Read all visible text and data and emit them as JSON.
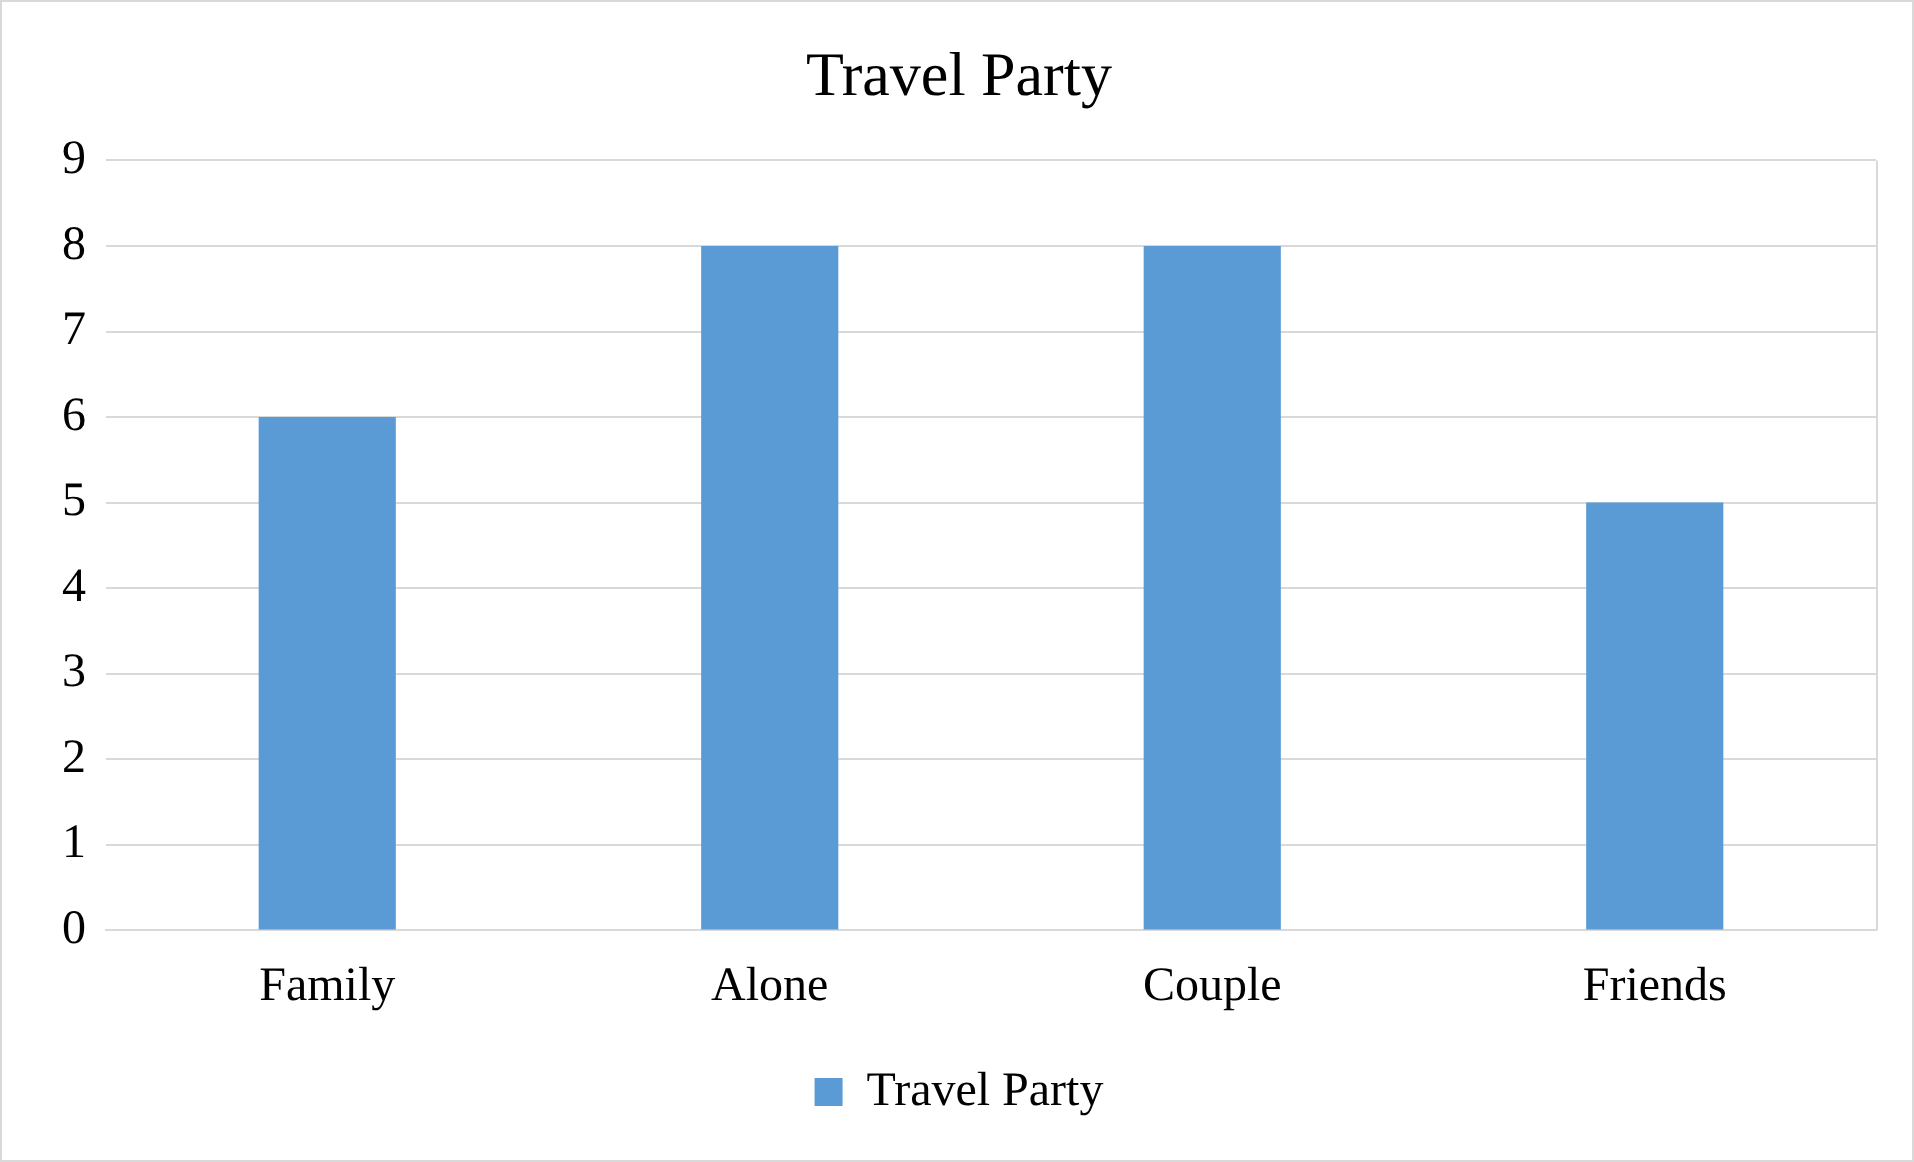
{
  "chart_data": {
    "type": "bar",
    "title": "Travel Party",
    "categories": [
      "Family",
      "Alone",
      "Couple",
      "Friends"
    ],
    "series": [
      {
        "name": "Travel Party",
        "color": "#5b9bd5",
        "values": [
          6,
          8,
          8,
          5
        ]
      }
    ],
    "ylim": [
      0,
      9
    ],
    "yticks": [
      0,
      1,
      2,
      3,
      4,
      5,
      6,
      7,
      8,
      9
    ],
    "grid": "y",
    "legend": "bottom"
  }
}
